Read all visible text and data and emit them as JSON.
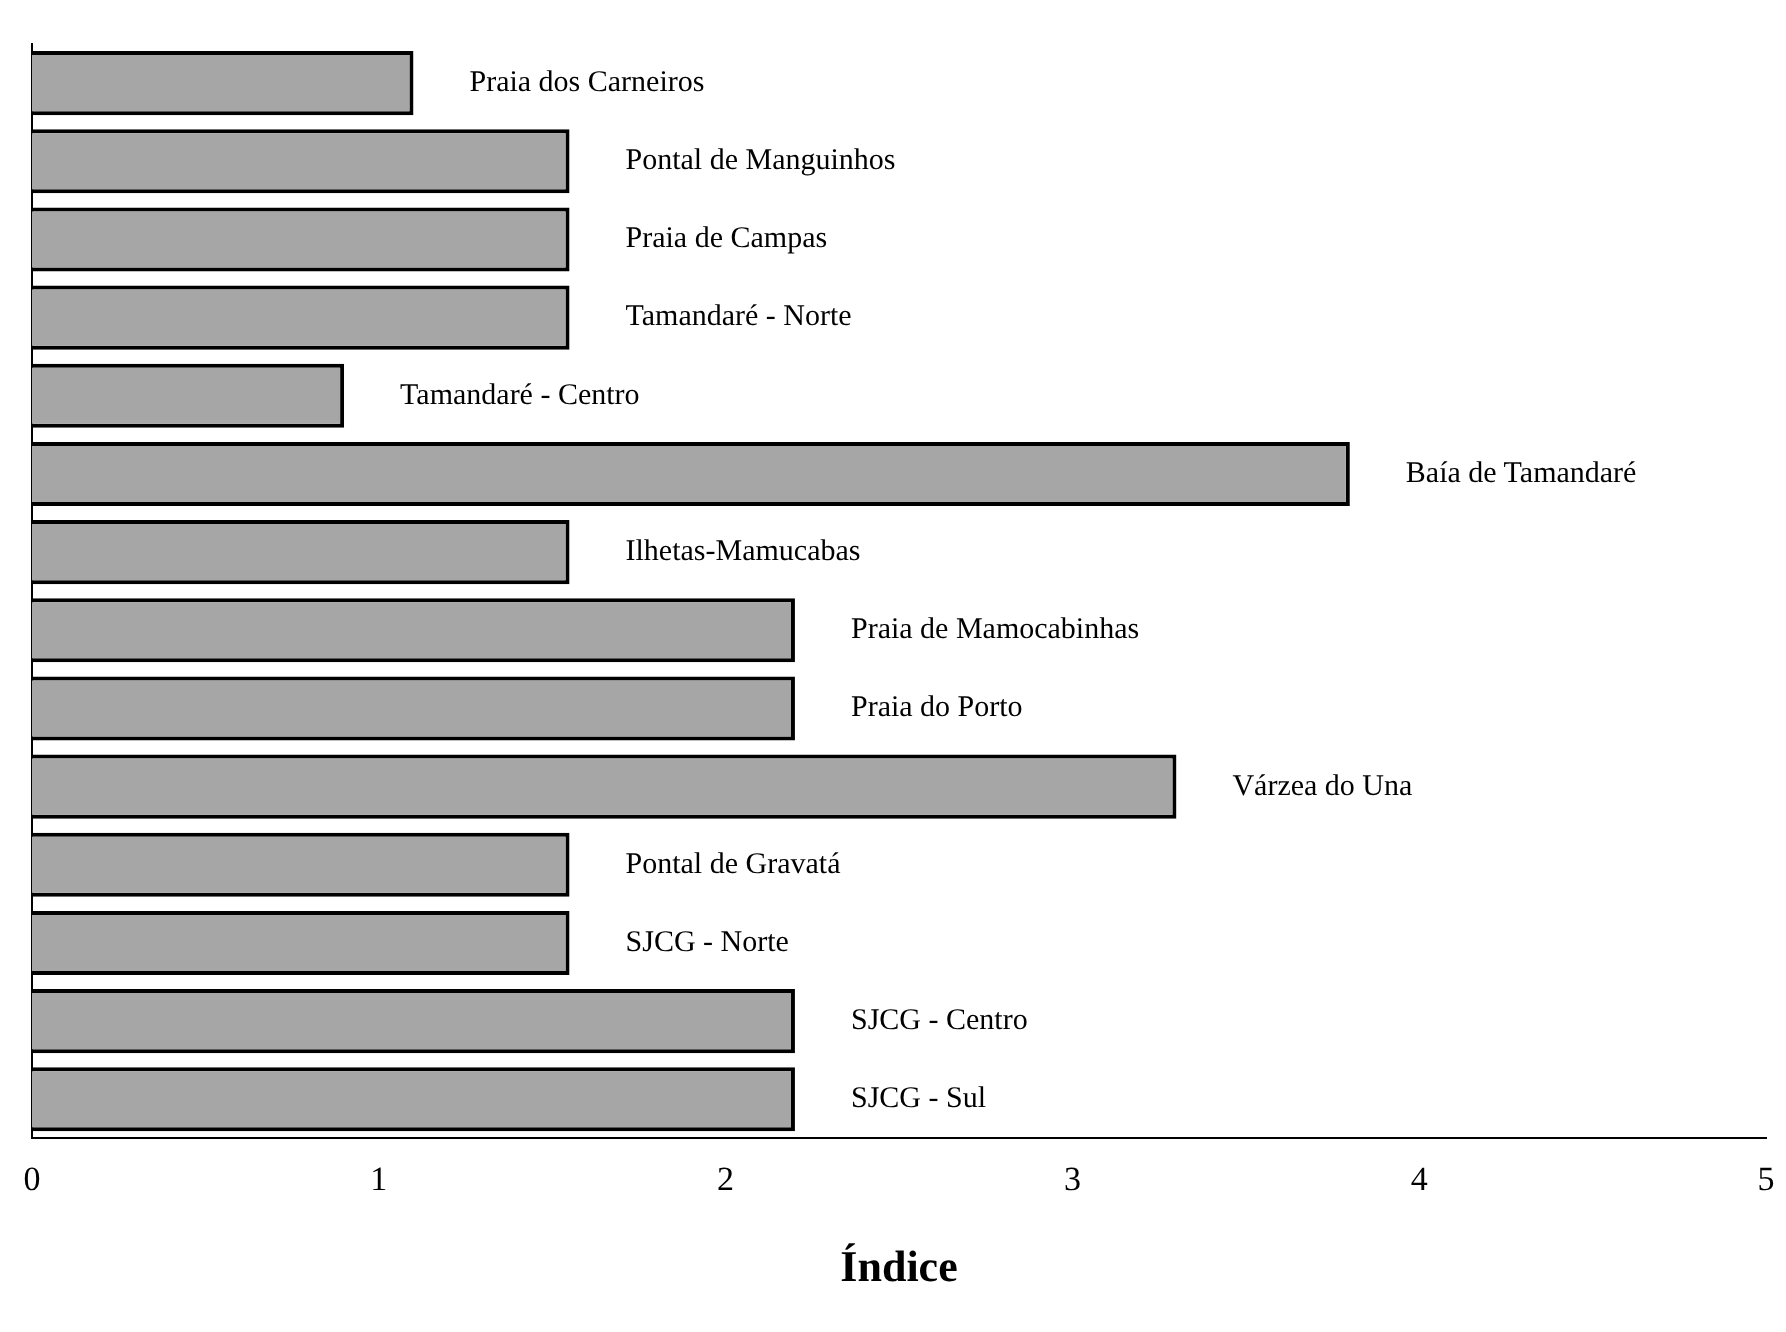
{
  "chart_data": {
    "type": "bar",
    "orientation": "horizontal",
    "xlabel": "Índice",
    "categories": [
      "Praia dos Carneiros",
      "Pontal de Manguinhos",
      "Praia de Campas",
      "Tamandaré - Norte",
      "Tamandaré - Centro",
      "Baía de Tamandaré",
      "Ilhetas-Mamucabas",
      "Praia de Mamocabinhas",
      "Praia do Porto",
      "Várzea do Una",
      "Pontal de Gravatá",
      "SJCG - Norte",
      "SJCG - Centro",
      "SJCG - Sul"
    ],
    "values": [
      1.1,
      1.55,
      1.55,
      1.55,
      0.9,
      3.8,
      1.55,
      2.2,
      2.2,
      3.3,
      1.55,
      1.55,
      2.2,
      2.2
    ],
    "color": "#a6a6a6",
    "xlim": [
      0,
      5
    ],
    "xticks": [
      0,
      1,
      2,
      3,
      4,
      5
    ],
    "grid": false,
    "legend": false
  }
}
